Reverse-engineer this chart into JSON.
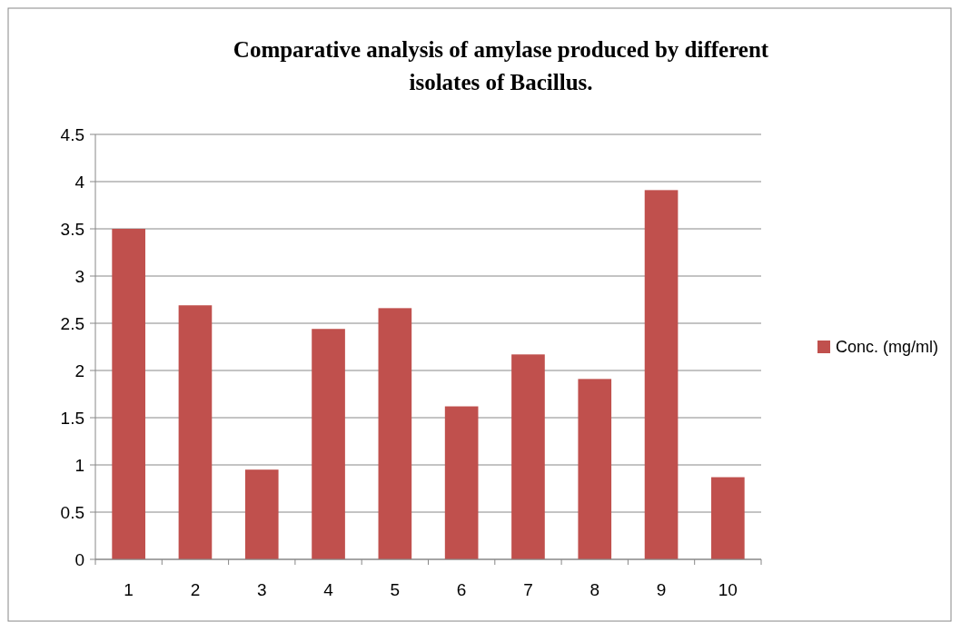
{
  "chart_data": {
    "type": "bar",
    "title": "Comparative analysis of amylase produced by different\nisolates of Bacillus.",
    "categories": [
      "1",
      "2",
      "3",
      "4",
      "5",
      "6",
      "7",
      "8",
      "9",
      "10"
    ],
    "series": [
      {
        "name": "Conc. (mg/ml)",
        "color": "#c0504d",
        "values": [
          3.5,
          2.69,
          0.95,
          2.44,
          2.66,
          1.62,
          2.17,
          1.91,
          3.91,
          0.87
        ]
      }
    ],
    "ylim": [
      0,
      4.5
    ],
    "yticks": [
      0,
      0.5,
      1,
      1.5,
      2,
      2.5,
      3,
      3.5,
      4,
      4.5
    ],
    "grid": "y",
    "legend": "right"
  }
}
